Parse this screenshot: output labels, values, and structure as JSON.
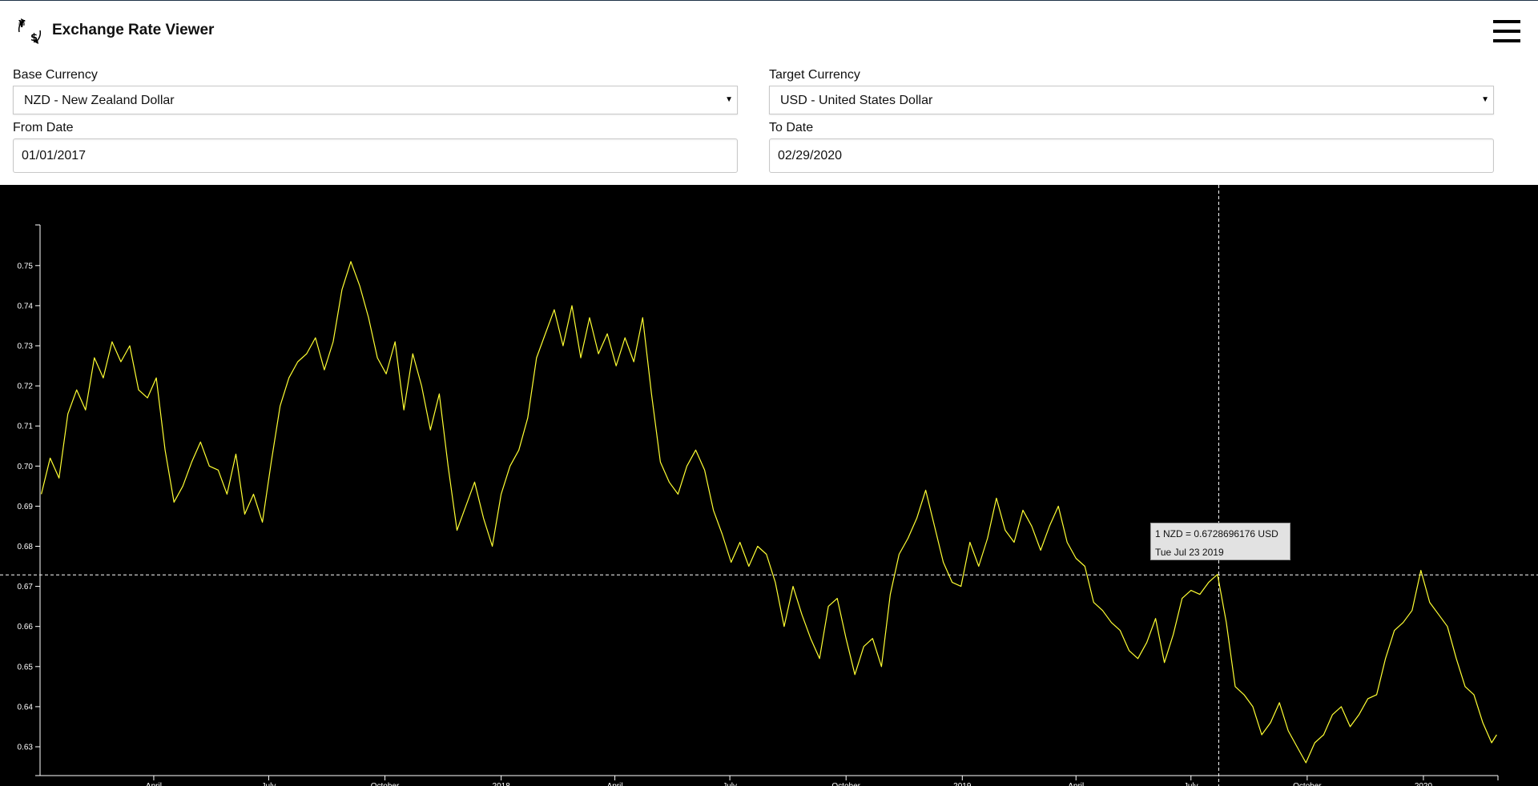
{
  "app": {
    "title": "Exchange Rate Viewer",
    "logo_icon": "currency-exchange-icon",
    "menu_icon": "hamburger-menu-icon"
  },
  "form": {
    "base_currency": {
      "label": "Base Currency",
      "value": "NZD - New Zealand Dollar"
    },
    "target_currency": {
      "label": "Target Currency",
      "value": "USD - United States Dollar"
    },
    "from_date": {
      "label": "From Date",
      "value": "01/01/2017"
    },
    "to_date": {
      "label": "To Date",
      "value": "02/29/2020"
    }
  },
  "tooltip": {
    "rate_text": "1 NZD = 0.6728696176 USD",
    "date_text": "Tue Jul 23 2019"
  },
  "colors": {
    "line": "#ffff33",
    "chart_bg": "#000000",
    "axis": "#ffffff",
    "tooltip_bg": "#e2e2e2",
    "header_accent": "#1f3347"
  },
  "chart_data": {
    "type": "line",
    "title": "",
    "xlabel": "",
    "ylabel": "",
    "x_range": [
      "2017-01-01",
      "2020-02-29"
    ],
    "ylim": [
      0.622,
      0.753
    ],
    "yticks": [
      "0.63",
      "0.64",
      "0.65",
      "0.66",
      "0.67",
      "0.68",
      "0.69",
      "0.70",
      "0.71",
      "0.72",
      "0.73",
      "0.74",
      "0.75"
    ],
    "xticks": [
      {
        "date": "2017-04-01",
        "label": "April"
      },
      {
        "date": "2017-07-01",
        "label": "July"
      },
      {
        "date": "2017-10-01",
        "label": "October"
      },
      {
        "date": "2018-01-01",
        "label": "2018"
      },
      {
        "date": "2018-04-01",
        "label": "April"
      },
      {
        "date": "2018-07-01",
        "label": "July"
      },
      {
        "date": "2018-10-01",
        "label": "October"
      },
      {
        "date": "2019-01-01",
        "label": "2019"
      },
      {
        "date": "2019-04-01",
        "label": "April"
      },
      {
        "date": "2019-07-01",
        "label": "July"
      },
      {
        "date": "2019-10-01",
        "label": "October"
      },
      {
        "date": "2020-01-01",
        "label": "2020"
      }
    ],
    "crosshair": {
      "date": "2019-07-23",
      "value": 0.6728696176
    },
    "grid": false,
    "series": [
      {
        "name": "NZD/USD",
        "points": [
          [
            "2017-01-02",
            0.693
          ],
          [
            "2017-01-09",
            0.702
          ],
          [
            "2017-01-16",
            0.697
          ],
          [
            "2017-01-23",
            0.713
          ],
          [
            "2017-01-30",
            0.719
          ],
          [
            "2017-02-06",
            0.714
          ],
          [
            "2017-02-13",
            0.727
          ],
          [
            "2017-02-20",
            0.722
          ],
          [
            "2017-02-27",
            0.731
          ],
          [
            "2017-03-06",
            0.726
          ],
          [
            "2017-03-13",
            0.73
          ],
          [
            "2017-03-20",
            0.719
          ],
          [
            "2017-03-27",
            0.717
          ],
          [
            "2017-04-03",
            0.722
          ],
          [
            "2017-04-10",
            0.704
          ],
          [
            "2017-04-17",
            0.691
          ],
          [
            "2017-04-24",
            0.695
          ],
          [
            "2017-05-01",
            0.701
          ],
          [
            "2017-05-08",
            0.706
          ],
          [
            "2017-05-15",
            0.7
          ],
          [
            "2017-05-22",
            0.699
          ],
          [
            "2017-05-29",
            0.693
          ],
          [
            "2017-06-05",
            0.703
          ],
          [
            "2017-06-12",
            0.688
          ],
          [
            "2017-06-19",
            0.693
          ],
          [
            "2017-06-26",
            0.686
          ],
          [
            "2017-07-03",
            0.701
          ],
          [
            "2017-07-10",
            0.715
          ],
          [
            "2017-07-17",
            0.722
          ],
          [
            "2017-07-24",
            0.726
          ],
          [
            "2017-07-31",
            0.728
          ],
          [
            "2017-08-07",
            0.732
          ],
          [
            "2017-08-14",
            0.724
          ],
          [
            "2017-08-21",
            0.731
          ],
          [
            "2017-08-28",
            0.744
          ],
          [
            "2017-09-04",
            0.751
          ],
          [
            "2017-09-11",
            0.745
          ],
          [
            "2017-09-18",
            0.737
          ],
          [
            "2017-09-25",
            0.727
          ],
          [
            "2017-10-02",
            0.723
          ],
          [
            "2017-10-09",
            0.731
          ],
          [
            "2017-10-16",
            0.714
          ],
          [
            "2017-10-23",
            0.728
          ],
          [
            "2017-10-30",
            0.72
          ],
          [
            "2017-11-06",
            0.709
          ],
          [
            "2017-11-13",
            0.718
          ],
          [
            "2017-11-20",
            0.7
          ],
          [
            "2017-11-27",
            0.684
          ],
          [
            "2017-12-04",
            0.69
          ],
          [
            "2017-12-11",
            0.696
          ],
          [
            "2017-12-18",
            0.687
          ],
          [
            "2017-12-25",
            0.68
          ],
          [
            "2018-01-01",
            0.693
          ],
          [
            "2018-01-08",
            0.7
          ],
          [
            "2018-01-15",
            0.704
          ],
          [
            "2018-01-22",
            0.712
          ],
          [
            "2018-01-29",
            0.727
          ],
          [
            "2018-02-05",
            0.733
          ],
          [
            "2018-02-12",
            0.739
          ],
          [
            "2018-02-19",
            0.73
          ],
          [
            "2018-02-26",
            0.74
          ],
          [
            "2018-03-05",
            0.727
          ],
          [
            "2018-03-12",
            0.737
          ],
          [
            "2018-03-19",
            0.728
          ],
          [
            "2018-03-26",
            0.733
          ],
          [
            "2018-04-02",
            0.725
          ],
          [
            "2018-04-09",
            0.732
          ],
          [
            "2018-04-16",
            0.726
          ],
          [
            "2018-04-23",
            0.737
          ],
          [
            "2018-04-30",
            0.718
          ],
          [
            "2018-05-07",
            0.701
          ],
          [
            "2018-05-14",
            0.696
          ],
          [
            "2018-05-21",
            0.693
          ],
          [
            "2018-05-28",
            0.7
          ],
          [
            "2018-06-04",
            0.704
          ],
          [
            "2018-06-11",
            0.699
          ],
          [
            "2018-06-18",
            0.689
          ],
          [
            "2018-06-25",
            0.683
          ],
          [
            "2018-07-02",
            0.676
          ],
          [
            "2018-07-09",
            0.681
          ],
          [
            "2018-07-16",
            0.675
          ],
          [
            "2018-07-23",
            0.68
          ],
          [
            "2018-07-30",
            0.678
          ],
          [
            "2018-08-06",
            0.671
          ],
          [
            "2018-08-13",
            0.66
          ],
          [
            "2018-08-20",
            0.67
          ],
          [
            "2018-08-27",
            0.663
          ],
          [
            "2018-09-03",
            0.657
          ],
          [
            "2018-09-10",
            0.652
          ],
          [
            "2018-09-17",
            0.665
          ],
          [
            "2018-09-24",
            0.667
          ],
          [
            "2018-10-01",
            0.657
          ],
          [
            "2018-10-08",
            0.648
          ],
          [
            "2018-10-15",
            0.655
          ],
          [
            "2018-10-22",
            0.657
          ],
          [
            "2018-10-29",
            0.65
          ],
          [
            "2018-11-05",
            0.668
          ],
          [
            "2018-11-12",
            0.678
          ],
          [
            "2018-11-19",
            0.682
          ],
          [
            "2018-11-26",
            0.687
          ],
          [
            "2018-12-03",
            0.694
          ],
          [
            "2018-12-10",
            0.685
          ],
          [
            "2018-12-17",
            0.676
          ],
          [
            "2018-12-24",
            0.671
          ],
          [
            "2018-12-31",
            0.67
          ],
          [
            "2019-01-07",
            0.681
          ],
          [
            "2019-01-14",
            0.675
          ],
          [
            "2019-01-21",
            0.682
          ],
          [
            "2019-01-28",
            0.692
          ],
          [
            "2019-02-04",
            0.684
          ],
          [
            "2019-02-11",
            0.681
          ],
          [
            "2019-02-18",
            0.689
          ],
          [
            "2019-02-25",
            0.685
          ],
          [
            "2019-03-04",
            0.679
          ],
          [
            "2019-03-11",
            0.685
          ],
          [
            "2019-03-18",
            0.69
          ],
          [
            "2019-03-25",
            0.681
          ],
          [
            "2019-04-01",
            0.677
          ],
          [
            "2019-04-08",
            0.675
          ],
          [
            "2019-04-15",
            0.666
          ],
          [
            "2019-04-22",
            0.664
          ],
          [
            "2019-04-29",
            0.661
          ],
          [
            "2019-05-06",
            0.659
          ],
          [
            "2019-05-13",
            0.654
          ],
          [
            "2019-05-20",
            0.652
          ],
          [
            "2019-05-27",
            0.656
          ],
          [
            "2019-06-03",
            0.662
          ],
          [
            "2019-06-10",
            0.651
          ],
          [
            "2019-06-17",
            0.658
          ],
          [
            "2019-06-24",
            0.667
          ],
          [
            "2019-07-01",
            0.669
          ],
          [
            "2019-07-08",
            0.668
          ],
          [
            "2019-07-15",
            0.671
          ],
          [
            "2019-07-22",
            0.673
          ],
          [
            "2019-07-29",
            0.661
          ],
          [
            "2019-08-05",
            0.645
          ],
          [
            "2019-08-12",
            0.643
          ],
          [
            "2019-08-19",
            0.64
          ],
          [
            "2019-08-26",
            0.633
          ],
          [
            "2019-09-02",
            0.636
          ],
          [
            "2019-09-09",
            0.641
          ],
          [
            "2019-09-16",
            0.634
          ],
          [
            "2019-09-23",
            0.63
          ],
          [
            "2019-09-30",
            0.626
          ],
          [
            "2019-10-07",
            0.631
          ],
          [
            "2019-10-14",
            0.633
          ],
          [
            "2019-10-21",
            0.638
          ],
          [
            "2019-10-28",
            0.64
          ],
          [
            "2019-11-04",
            0.635
          ],
          [
            "2019-11-11",
            0.638
          ],
          [
            "2019-11-18",
            0.642
          ],
          [
            "2019-11-25",
            0.643
          ],
          [
            "2019-12-02",
            0.652
          ],
          [
            "2019-12-09",
            0.659
          ],
          [
            "2019-12-16",
            0.661
          ],
          [
            "2019-12-23",
            0.664
          ],
          [
            "2019-12-30",
            0.674
          ],
          [
            "2020-01-06",
            0.666
          ],
          [
            "2020-01-13",
            0.663
          ],
          [
            "2020-01-20",
            0.66
          ],
          [
            "2020-01-27",
            0.652
          ],
          [
            "2020-02-03",
            0.645
          ],
          [
            "2020-02-10",
            0.643
          ],
          [
            "2020-02-17",
            0.636
          ],
          [
            "2020-02-24",
            0.631
          ],
          [
            "2020-02-28",
            0.633
          ]
        ]
      }
    ]
  }
}
